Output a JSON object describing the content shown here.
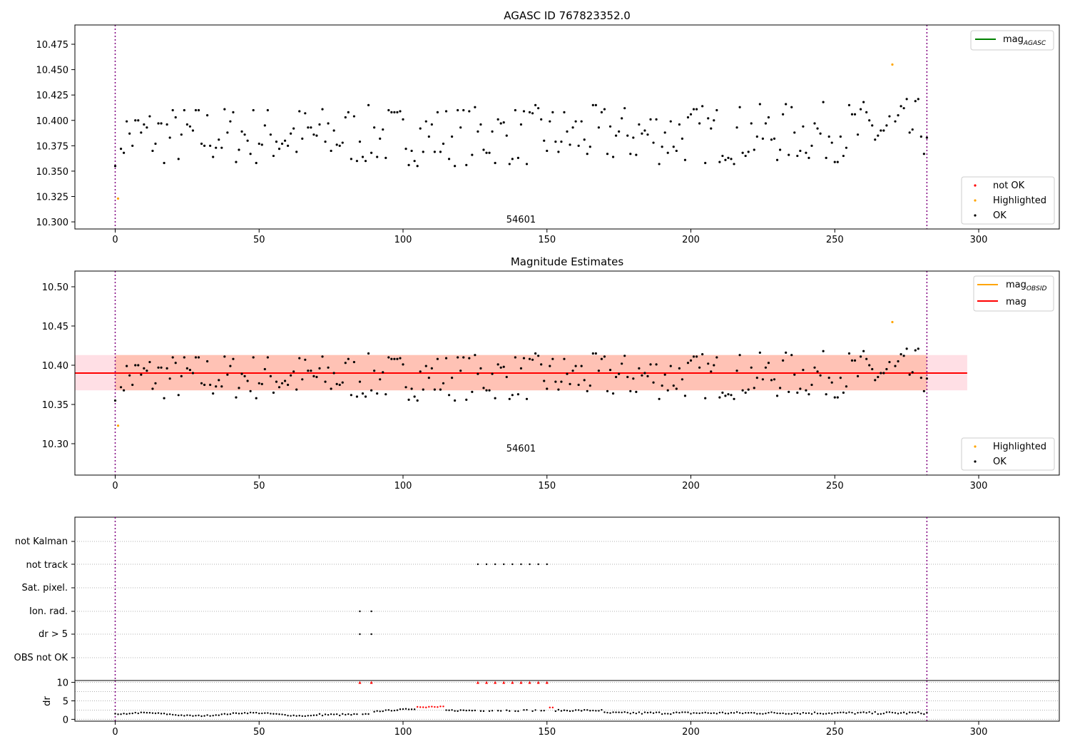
{
  "chart_data": [
    {
      "type": "scatter",
      "title": "AGASC ID 767823352.0",
      "xlim": [
        -14,
        328
      ],
      "ylim": [
        10.293,
        10.494
      ],
      "xticks": [
        0,
        50,
        100,
        150,
        200,
        250,
        300
      ],
      "yticks": [
        10.3,
        10.325,
        10.35,
        10.375,
        10.4,
        10.425,
        10.45,
        10.475
      ],
      "grid": false,
      "vlines": [
        0,
        282
      ],
      "annotation": {
        "text": "54601",
        "x": 141,
        "y": 10.3
      },
      "legend_top": {
        "placement": "top-right",
        "entries": [
          {
            "label": "mag",
            "sub": "AGASC",
            "color": "#008000"
          }
        ]
      },
      "legend_bottom": {
        "placement": "bottom-right",
        "entries": [
          {
            "label": "not OK",
            "color": "#ff0000"
          },
          {
            "label": "Highlighted",
            "color": "#ffa500"
          },
          {
            "label": "OK",
            "color": "#000000"
          }
        ]
      },
      "highlighted": [
        [
          1,
          10.323
        ],
        [
          270,
          10.455
        ]
      ]
    },
    {
      "type": "scatter",
      "title": "Magnitude Estimates",
      "xlim": [
        -14,
        328
      ],
      "ylim": [
        10.26,
        10.52
      ],
      "xticks": [
        0,
        50,
        100,
        150,
        200,
        250,
        300
      ],
      "yticks": [
        10.3,
        10.35,
        10.4,
        10.45,
        10.5
      ],
      "grid": false,
      "vlines": [
        0,
        282
      ],
      "annotation": {
        "text": "54601",
        "x": 141,
        "y": 10.291
      },
      "mag_line": 10.39,
      "band_outer": [
        10.368,
        10.413
      ],
      "band_inner": [
        10.368,
        10.413
      ],
      "band_x": [
        -14,
        296
      ],
      "legend_top": {
        "placement": "top-right",
        "entries": [
          {
            "label": "mag",
            "sub": "OBSID",
            "color": "#ffa500"
          },
          {
            "label": "mag",
            "color": "#ff0000"
          }
        ]
      },
      "legend_bottom": {
        "placement": "bottom-right",
        "entries": [
          {
            "label": "Highlighted",
            "color": "#ffa500"
          },
          {
            "label": "OK",
            "color": "#000000"
          }
        ]
      },
      "highlighted": [
        [
          1,
          10.323
        ],
        [
          270,
          10.455
        ]
      ]
    },
    {
      "type": "scatter",
      "title": "",
      "xlim": [
        -14,
        328
      ],
      "xticks": [
        0,
        50,
        100,
        150,
        200,
        250,
        300
      ],
      "flag_labels": [
        "not Kalman",
        "not track",
        "Sat. pixel.",
        "Ion. rad.",
        "dr > 5",
        "OBS not OK"
      ],
      "flags": {
        "not track": [
          126,
          129,
          132,
          135,
          138,
          141,
          144,
          147,
          150
        ],
        "Ion. rad.": [
          85,
          89
        ],
        "dr > 5": [
          85,
          89
        ]
      },
      "vlines": [
        0,
        282
      ]
    },
    {
      "type": "scatter",
      "title": "",
      "ylabel": "dr",
      "xlim": [
        -14,
        328
      ],
      "ylim": [
        -0.5,
        10.5
      ],
      "xticks": [
        0,
        50,
        100,
        150,
        200,
        250,
        300
      ],
      "yticks": [
        0,
        5,
        10
      ],
      "dr_high": [
        85,
        89,
        126,
        129,
        132,
        135,
        138,
        141,
        144,
        147,
        150
      ],
      "red_segments": [
        [
          105,
          114
        ],
        [
          150,
          152
        ]
      ],
      "vlines": [
        0,
        282
      ]
    }
  ]
}
